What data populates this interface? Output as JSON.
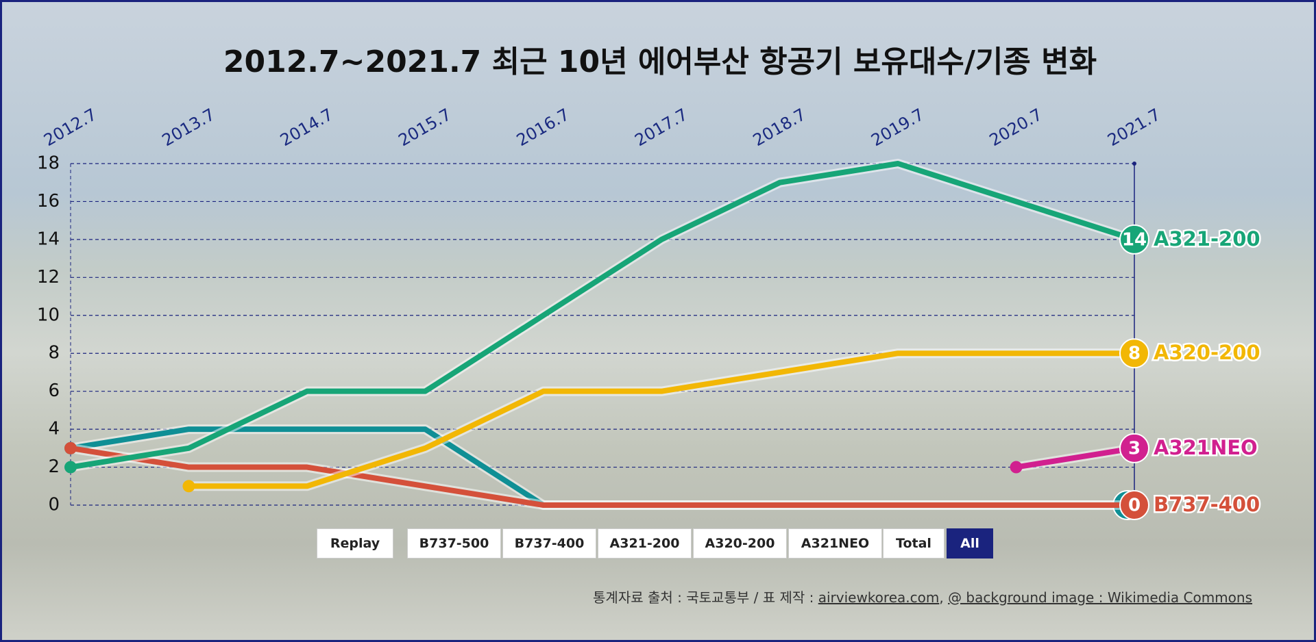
{
  "chart_data": {
    "type": "line",
    "title": "2012.7~2021.7 최근 10년 에어부산 항공기 보유대수/기종 변화",
    "categories": [
      "2012.7",
      "2013.7",
      "2014.7",
      "2015.7",
      "2016.7",
      "2017.7",
      "2018.7",
      "2019.7",
      "2020.7",
      "2021.7"
    ],
    "series": [
      {
        "name": "B737-500",
        "color": "#0f8f95",
        "values": [
          3,
          4,
          4,
          4,
          0,
          0,
          0,
          0,
          0,
          0
        ]
      },
      {
        "name": "B737-400",
        "color": "#d4503a",
        "values": [
          3,
          2,
          2,
          1,
          0,
          0,
          0,
          0,
          0,
          0
        ]
      },
      {
        "name": "A321-200",
        "color": "#17a577",
        "values": [
          2,
          3,
          6,
          6,
          10,
          14,
          17,
          18,
          16,
          14
        ]
      },
      {
        "name": "A320-200",
        "color": "#f2b705",
        "values": [
          null,
          1,
          1,
          3,
          6,
          6,
          7,
          8,
          8,
          8
        ]
      },
      {
        "name": "A321NEO",
        "color": "#d1208f",
        "values": [
          null,
          null,
          null,
          null,
          null,
          null,
          null,
          null,
          2,
          3
        ]
      }
    ],
    "ylim": [
      0,
      18
    ],
    "yticks": [
      0,
      2,
      4,
      6,
      8,
      10,
      12,
      14,
      16,
      18
    ],
    "grid": true
  },
  "controls": {
    "replay": "Replay",
    "total": "Total",
    "all": "All"
  },
  "footer": {
    "source": "통계자료 출처 : 국토교통부 / 표 제작 : ",
    "link1": "airviewkorea.com",
    "sep": ", ",
    "link2": "@ background image : Wikimedia Commons"
  }
}
